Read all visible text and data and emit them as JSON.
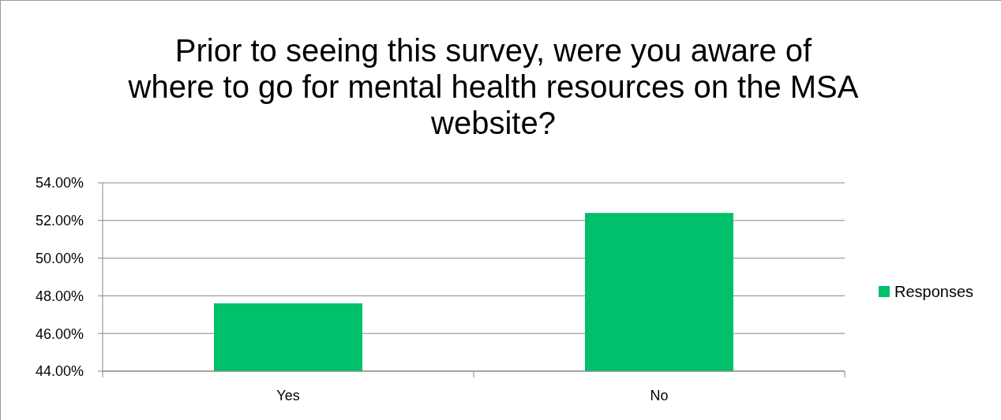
{
  "chart_data": {
    "type": "bar",
    "title": "Prior to seeing this survey, were you aware of where to go for mental health resources on the MSA website?",
    "categories": [
      "Yes",
      "No"
    ],
    "series": [
      {
        "name": "Responses",
        "color": "#00c06b",
        "values": [
          47.6,
          52.4
        ]
      }
    ],
    "ylim": [
      44,
      54
    ],
    "yticks": [
      {
        "value": 44,
        "label": "44.00%"
      },
      {
        "value": 46,
        "label": "46.00%"
      },
      {
        "value": 48,
        "label": "48.00%"
      },
      {
        "value": 50,
        "label": "50.00%"
      },
      {
        "value": 52,
        "label": "52.00%"
      },
      {
        "value": 54,
        "label": "54.00%"
      }
    ],
    "grid": "y",
    "legend": "right"
  }
}
